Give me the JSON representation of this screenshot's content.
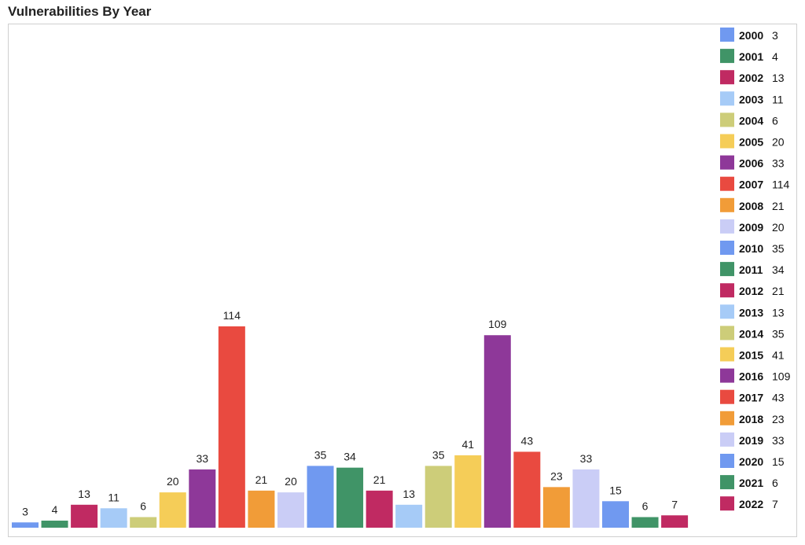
{
  "title": "Vulnerabilities By Year",
  "chart_data": {
    "type": "bar",
    "title": "Vulnerabilities By Year",
    "categories": [
      "2000",
      "2001",
      "2002",
      "2003",
      "2004",
      "2005",
      "2006",
      "2007",
      "2008",
      "2009",
      "2010",
      "2011",
      "2012",
      "2013",
      "2014",
      "2015",
      "2016",
      "2017",
      "2018",
      "2019",
      "2020",
      "2021",
      "2022"
    ],
    "values": [
      3,
      4,
      13,
      11,
      6,
      20,
      33,
      114,
      21,
      20,
      35,
      34,
      21,
      13,
      35,
      41,
      109,
      43,
      23,
      33,
      15,
      6,
      7
    ],
    "colors": [
      "#7099f0",
      "#409467",
      "#c02a62",
      "#a6cbf7",
      "#cdcd79",
      "#f5cd58",
      "#8e3899",
      "#e94a40",
      "#f19c38",
      "#cacdf6",
      "#7099f0",
      "#409467",
      "#c02a62",
      "#a6cbf7",
      "#cdcd79",
      "#f5cd58",
      "#8e3899",
      "#e94a40",
      "#f19c38",
      "#cacdf6",
      "#7099f0",
      "#409467",
      "#c02a62"
    ],
    "legend_position": "right",
    "grid": false,
    "ylim": [
      0,
      114
    ]
  }
}
